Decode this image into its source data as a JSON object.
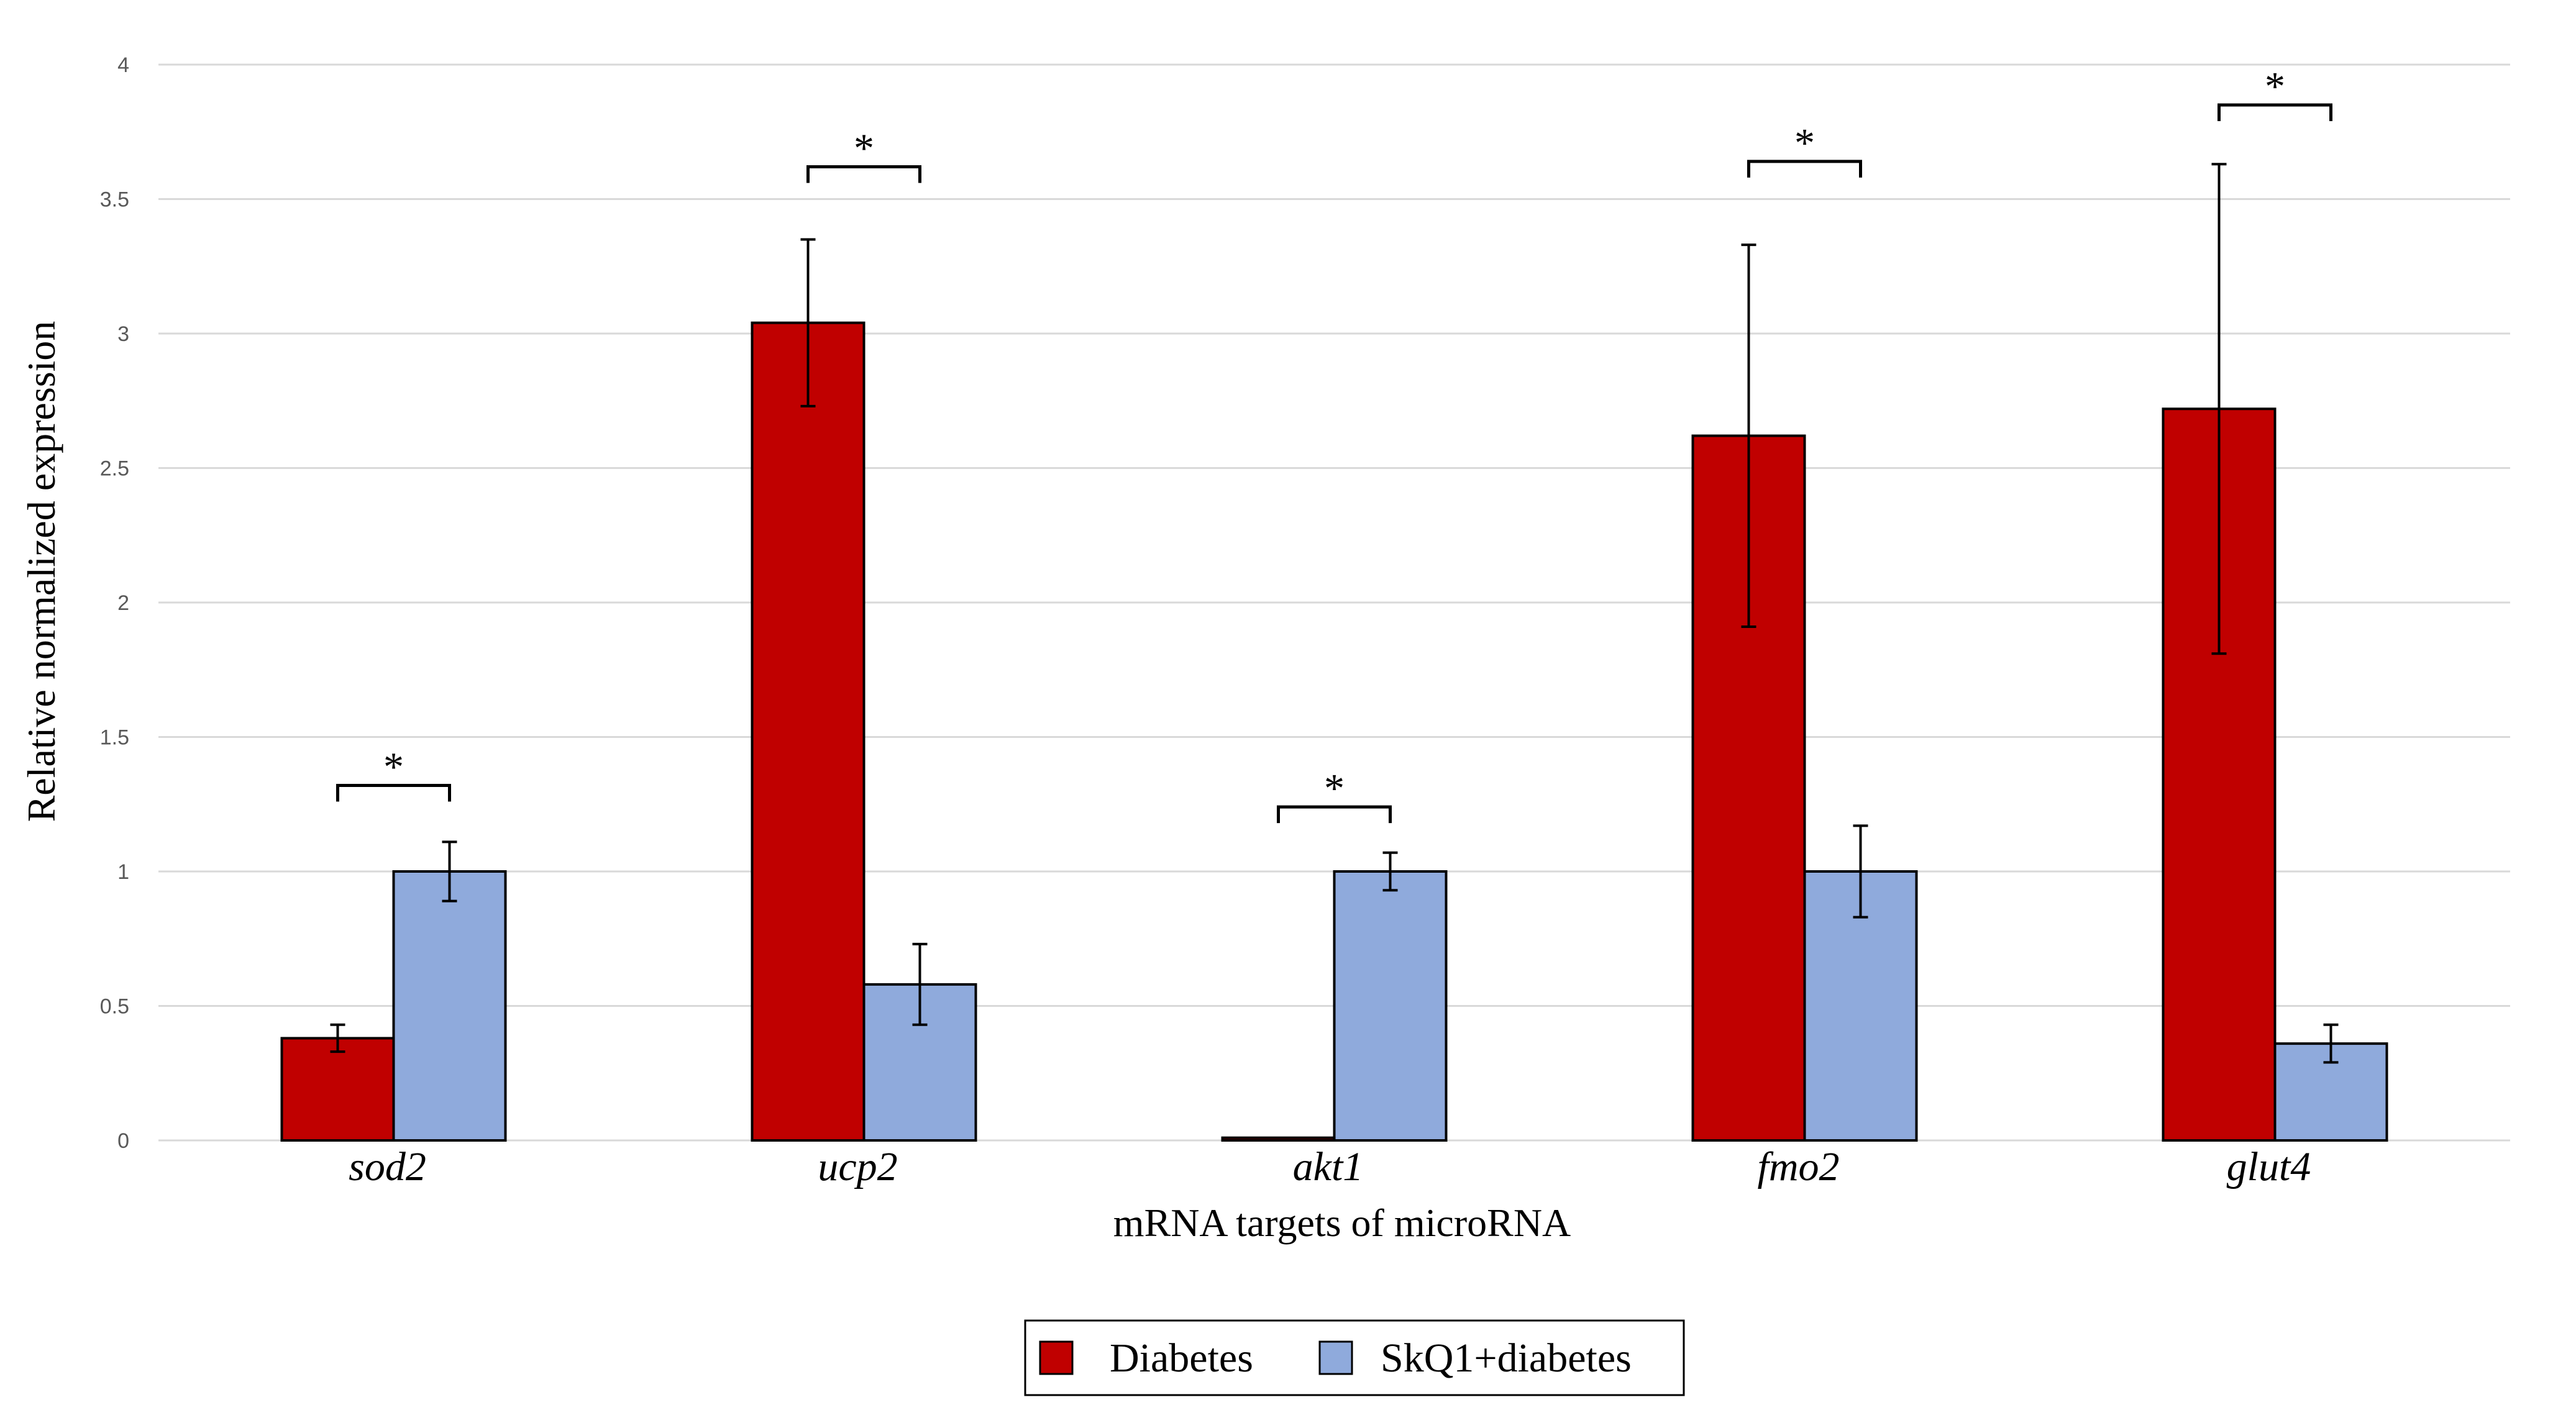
{
  "chart_data": {
    "type": "bar",
    "title": "",
    "xlabel": "mRNA targets of microRNA",
    "ylabel": "Relative normalized expression",
    "ylim": [
      0,
      4
    ],
    "yticks": [
      "0",
      "0.5",
      "1",
      "1.5",
      "2",
      "2.5",
      "3",
      "3.5",
      "4"
    ],
    "grid": true,
    "legend_position": "bottom-center",
    "categories": [
      "sod2",
      "ucp2",
      "akt1",
      "fmo2",
      "glut4"
    ],
    "series": [
      {
        "name": "Diabetes",
        "color": "#C00000",
        "values": [
          0.38,
          3.04,
          0.01,
          2.62,
          2.72
        ],
        "errors": [
          0.05,
          0.31,
          0.005,
          0.71,
          0.91
        ]
      },
      {
        "name": "SkQ1+diabetes",
        "color": "#8FAADC",
        "values": [
          1.0,
          0.58,
          1.0,
          1.0,
          0.36
        ],
        "errors": [
          0.11,
          0.15,
          0.07,
          0.17,
          0.07
        ]
      }
    ],
    "significance": [
      {
        "category": "sod2",
        "label": "*",
        "y": 1.32
      },
      {
        "category": "ucp2",
        "label": "*",
        "y": 3.62
      },
      {
        "category": "akt1",
        "label": "*",
        "y": 1.24
      },
      {
        "category": "fmo2",
        "label": "*",
        "y": 3.64
      },
      {
        "category": "glut4",
        "label": "*",
        "y": 3.85
      }
    ]
  }
}
